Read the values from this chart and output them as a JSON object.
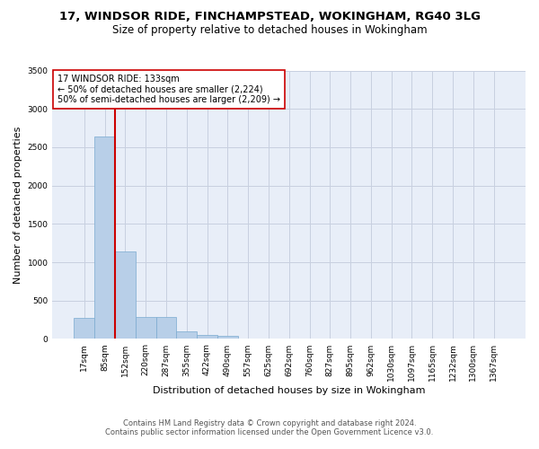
{
  "title_line1": "17, WINDSOR RIDE, FINCHAMPSTEAD, WOKINGHAM, RG40 3LG",
  "title_line2": "Size of property relative to detached houses in Wokingham",
  "xlabel": "Distribution of detached houses by size in Wokingham",
  "ylabel": "Number of detached properties",
  "bar_color": "#b8cfe8",
  "bar_edge_color": "#7aaad0",
  "background_color": "#e8eef8",
  "categories": [
    "17sqm",
    "85sqm",
    "152sqm",
    "220sqm",
    "287sqm",
    "355sqm",
    "422sqm",
    "490sqm",
    "557sqm",
    "625sqm",
    "692sqm",
    "760sqm",
    "827sqm",
    "895sqm",
    "962sqm",
    "1030sqm",
    "1097sqm",
    "1165sqm",
    "1232sqm",
    "1300sqm",
    "1367sqm"
  ],
  "values": [
    270,
    2640,
    1140,
    285,
    285,
    95,
    55,
    40,
    0,
    0,
    0,
    0,
    0,
    0,
    0,
    0,
    0,
    0,
    0,
    0,
    0
  ],
  "ylim": [
    0,
    3500
  ],
  "yticks": [
    0,
    500,
    1000,
    1500,
    2000,
    2500,
    3000,
    3500
  ],
  "annotation_text": "17 WINDSOR RIDE: 133sqm\n← 50% of detached houses are smaller (2,224)\n50% of semi-detached houses are larger (2,209) →",
  "annotation_box_color": "#ffffff",
  "annotation_border_color": "#cc0000",
  "vline_color": "#cc0000",
  "vline_x": 1.5,
  "footer_line1": "Contains HM Land Registry data © Crown copyright and database right 2024.",
  "footer_line2": "Contains public sector information licensed under the Open Government Licence v3.0.",
  "grid_color": "#c8d0e0",
  "title_fontsize": 9.5,
  "subtitle_fontsize": 8.5,
  "tick_fontsize": 6.5,
  "ylabel_fontsize": 8,
  "xlabel_fontsize": 8,
  "annotation_fontsize": 7,
  "footer_fontsize": 6
}
